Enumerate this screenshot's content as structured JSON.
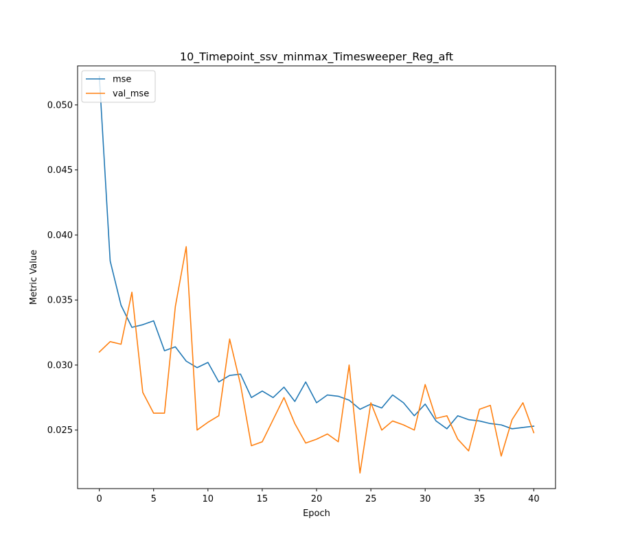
{
  "chart_data": {
    "type": "line",
    "title": "10_Timepoint_ssv_minmax_Timesweeper_Reg_aft",
    "xlabel": "Epoch",
    "ylabel": "Metric Value",
    "xlim": [
      -2,
      42
    ],
    "ylim": [
      0.0205,
      0.053
    ],
    "xticks": [
      0,
      5,
      10,
      15,
      20,
      25,
      30,
      35,
      40
    ],
    "yticks": [
      0.025,
      0.03,
      0.035,
      0.04,
      0.045,
      0.05
    ],
    "ytick_labels": [
      "0.025",
      "0.030",
      "0.035",
      "0.040",
      "0.045",
      "0.050"
    ],
    "grid": false,
    "legend_position": "top-left",
    "x": [
      0,
      1,
      2,
      3,
      4,
      5,
      6,
      7,
      8,
      9,
      10,
      11,
      12,
      13,
      14,
      15,
      16,
      17,
      18,
      19,
      20,
      21,
      22,
      23,
      24,
      25,
      26,
      27,
      28,
      29,
      30,
      31,
      32,
      33,
      34,
      35,
      36,
      37,
      38,
      39,
      40
    ],
    "series": [
      {
        "name": "mse",
        "color": "#1f77b4",
        "values": [
          0.0522,
          0.038,
          0.0346,
          0.0329,
          0.0331,
          0.0334,
          0.0311,
          0.0314,
          0.0303,
          0.0298,
          0.0302,
          0.0287,
          0.0292,
          0.0293,
          0.0275,
          0.028,
          0.0275,
          0.0283,
          0.0272,
          0.0287,
          0.0271,
          0.0277,
          0.0276,
          0.0273,
          0.0266,
          0.027,
          0.0267,
          0.0277,
          0.0271,
          0.0261,
          0.027,
          0.0257,
          0.0251,
          0.0261,
          0.0258,
          0.0257,
          0.0255,
          0.0254,
          0.0251,
          0.0252,
          0.0253
        ]
      },
      {
        "name": "val_mse",
        "color": "#ff7f0e",
        "values": [
          0.031,
          0.0318,
          0.0316,
          0.0356,
          0.0279,
          0.0263,
          0.0263,
          0.0345,
          0.0391,
          0.025,
          0.0256,
          0.0261,
          0.032,
          0.0285,
          0.0238,
          0.0241,
          0.0258,
          0.0275,
          0.0255,
          0.024,
          0.0243,
          0.0247,
          0.0241,
          0.03,
          0.0217,
          0.0271,
          0.025,
          0.0257,
          0.0254,
          0.025,
          0.0285,
          0.0259,
          0.0261,
          0.0243,
          0.0234,
          0.0266,
          0.0269,
          0.023,
          0.0258,
          0.0271,
          0.0248
        ]
      }
    ]
  }
}
